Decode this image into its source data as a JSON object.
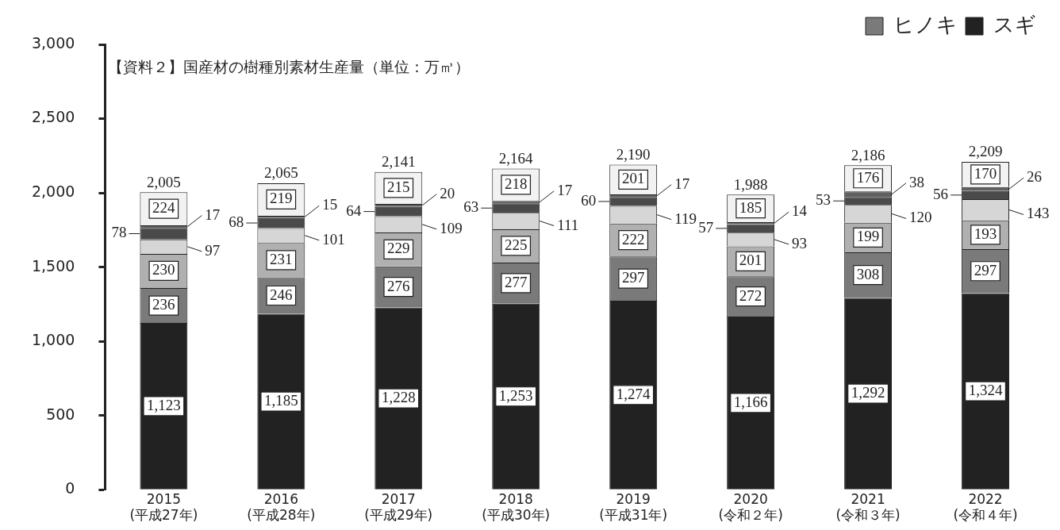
{
  "chart_data": {
    "type": "bar",
    "stacked": true,
    "title": "【資料２】国産材の樹種別素材生産量（単位：万㎥）",
    "categories": [
      "2015 (平成27年)",
      "2016 (平成28年)",
      "2017 (平成29年)",
      "2018 (平成30年)",
      "2019 (平成31年)",
      "2020 (令和２年)",
      "2021 (令和３年)",
      "2022 (令和４年)"
    ],
    "series": [
      {
        "name": "スギ",
        "color": "#222222",
        "values": [
          1123,
          1185,
          1228,
          1253,
          1274,
          1166,
          1292,
          1324
        ],
        "value_labels": [
          "1,123",
          "1,185",
          "1,228",
          "1,253",
          "1,274",
          "1,166",
          "1,292",
          "1,324"
        ]
      },
      {
        "name": "ヒノキ",
        "color": "#7a7a7a",
        "values": [
          236,
          246,
          276,
          277,
          297,
          272,
          308,
          297
        ],
        "value_labels": [
          "236",
          "246",
          "276",
          "277",
          "297",
          "272",
          "308",
          "297"
        ]
      },
      {
        "color": "#b0b0b0",
        "values": [
          230,
          231,
          229,
          225,
          222,
          201,
          199,
          193
        ],
        "value_labels": [
          "230",
          "231",
          "229",
          "225",
          "222",
          "201",
          "199",
          "193"
        ]
      },
      {
        "color": "#d6d6d6",
        "values": [
          97,
          101,
          109,
          111,
          119,
          93,
          120,
          143
        ],
        "value_labels": [
          "97",
          "101",
          "109",
          "111",
          "119",
          "93",
          "120",
          "143"
        ]
      },
      {
        "color": "#4a4a4a",
        "values": [
          78,
          68,
          64,
          63,
          60,
          57,
          53,
          56
        ],
        "value_labels": [
          "78",
          "68",
          "64",
          "63",
          "60",
          "57",
          "53",
          "56"
        ]
      },
      {
        "color": "#606060",
        "values": [
          17,
          15,
          20,
          17,
          17,
          14,
          38,
          26
        ],
        "value_labels": [
          "17",
          "15",
          "20",
          "17",
          "17",
          "14",
          "38",
          "26"
        ]
      },
      {
        "color": "#f2f2f2",
        "values": [
          224,
          219,
          215,
          218,
          201,
          185,
          176,
          170
        ],
        "value_labels": [
          "224",
          "219",
          "215",
          "218",
          "201",
          "185",
          "176",
          "170"
        ]
      }
    ],
    "totals": [
      "2,005",
      "2,065",
      "2,141",
      "2,164",
      "2,190",
      "1,988",
      "2,186",
      "2,209"
    ],
    "ylim": [
      0,
      3000
    ],
    "yticks": [
      {
        "value": 0,
        "label": "0"
      },
      {
        "value": 500,
        "label": "500"
      },
      {
        "value": 1000,
        "label": "1,000"
      },
      {
        "value": 1500,
        "label": "1,500"
      },
      {
        "value": 2000,
        "label": "2,000"
      },
      {
        "value": 2500,
        "label": "2,500"
      },
      {
        "value": 3000,
        "label": "3,000"
      }
    ],
    "grid": false,
    "legend": "top right"
  }
}
